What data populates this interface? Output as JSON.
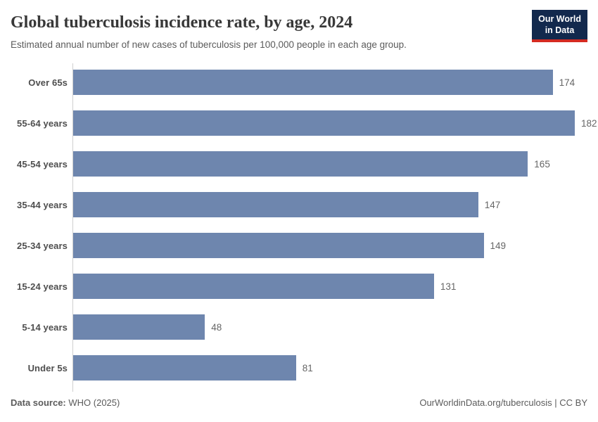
{
  "header": {
    "title": "Global tuberculosis incidence rate, by age, 2024",
    "subtitle": "Estimated annual number of new cases of tuberculosis per 100,000 people in each age group.",
    "logo": {
      "line1": "Our World",
      "line2": "in Data",
      "background_color": "#12294d",
      "accent_color": "#d42b21"
    }
  },
  "chart_data": {
    "type": "bar",
    "orientation": "horizontal",
    "title": "Global tuberculosis incidence rate, by age, 2024",
    "categories": [
      "Over 65s",
      "55-64 years",
      "45-54 years",
      "35-44 years",
      "25-34 years",
      "15-24 years",
      "5-14 years",
      "Under 5s"
    ],
    "values": [
      174,
      182,
      165,
      147,
      149,
      131,
      48,
      81
    ],
    "xlabel": "",
    "ylabel": "",
    "xlim": [
      0,
      182
    ],
    "grid": false,
    "value_labels_shown": true,
    "bar_color": "#6e86ae",
    "axis_line_color": "#cfcfcf",
    "value_label_color": "#666666"
  },
  "footer": {
    "source_label": "Data source:",
    "source_value": "WHO (2025)",
    "credit": "OurWorldinData.org/tuberculosis | CC BY"
  }
}
